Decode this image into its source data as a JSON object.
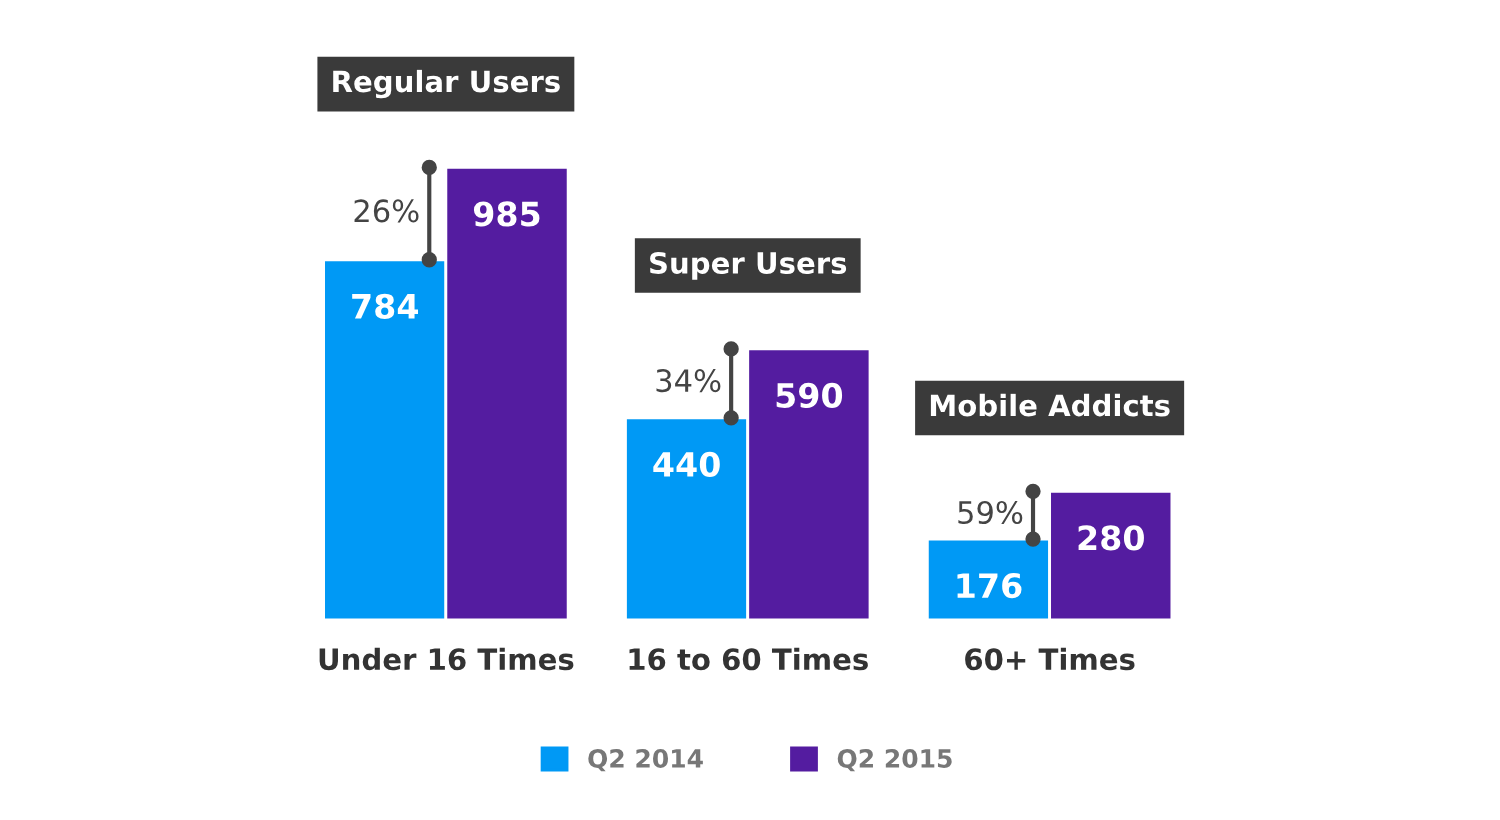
{
  "chart_data": {
    "type": "bar",
    "categories": [
      "Under 16 Times",
      "16 to 60 Times",
      "60+ Times"
    ],
    "series": [
      {
        "name": "Q2 2014",
        "color": "#0099f5",
        "values": [
          784,
          440,
          176
        ]
      },
      {
        "name": "Q2 2015",
        "color": "#541ca0",
        "values": [
          985,
          590,
          280
        ]
      }
    ],
    "data_labels": true,
    "legend": "bottom",
    "annotations": [
      {
        "text": "Regular Users",
        "x": "Under 16 Times",
        "y": 985
      },
      {
        "text": "Super Users",
        "x": "16 to 60 Times",
        "y": 590
      },
      {
        "text": "Mobile Addicts",
        "x": "60+ Times",
        "y": 280
      },
      {
        "text": "26%",
        "x": "Under 16 Times",
        "y": 784
      },
      {
        "text": "34%",
        "x": "16 to 60 Times",
        "y": 440
      },
      {
        "text": "59%",
        "x": "60+ Times",
        "y": 176
      }
    ]
  }
}
